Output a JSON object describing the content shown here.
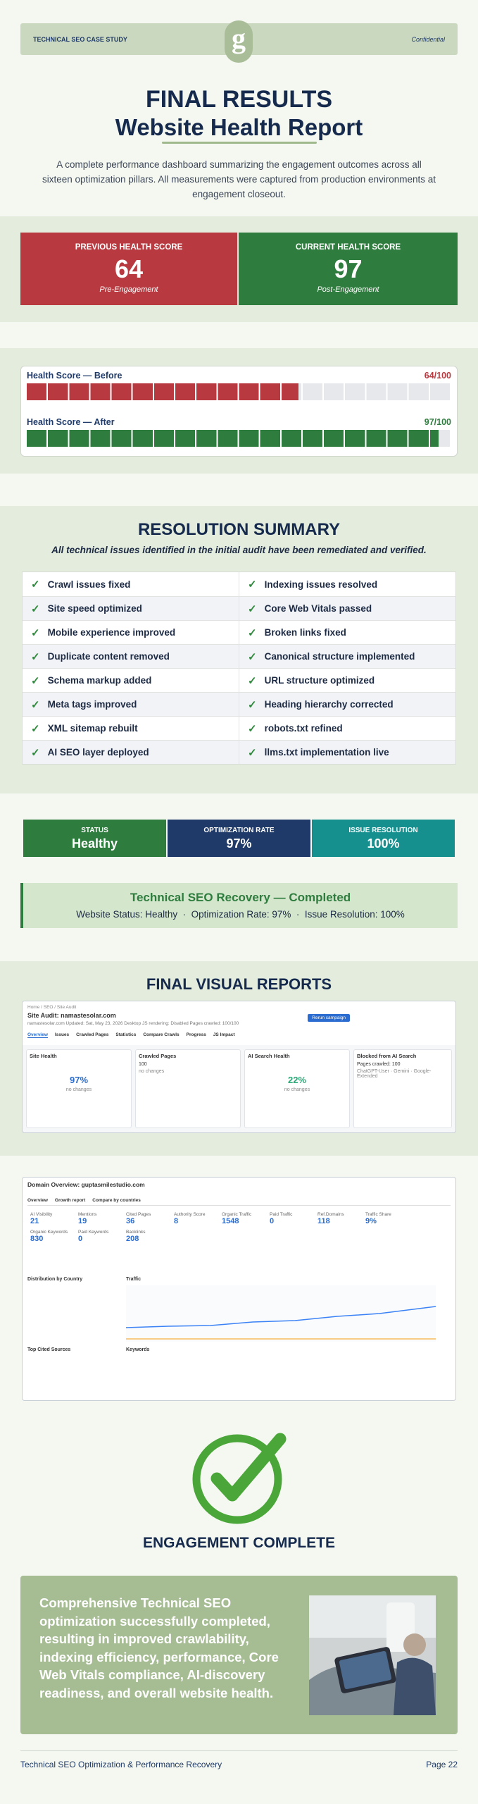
{
  "header": {
    "left": "TECHNICAL SEO CASE STUDY",
    "logo": "g",
    "right": "Confidential"
  },
  "title": {
    "line1": "FINAL RESULTS",
    "line2": "Website Health Report"
  },
  "intro": "A complete performance dashboard summarizing the engagement outcomes across all sixteen optimization pillars. All measurements were captured from production environments at engagement closeout.",
  "scores": [
    {
      "label": "PREVIOUS HEALTH SCORE",
      "value": "64",
      "note": "Pre-Engagement"
    },
    {
      "label": "CURRENT HEALTH SCORE",
      "value": "97",
      "note": "Post-Engagement"
    }
  ],
  "bars": [
    {
      "title": "Health Score — Before",
      "label": "64/100",
      "value": 64
    },
    {
      "title": "Health Score — After",
      "label": "97/100",
      "value": 97
    }
  ],
  "resolution": {
    "title": "RESOLUTION SUMMARY",
    "subtitle": "All technical issues identified in the initial audit have been remediated and verified.",
    "items": [
      [
        "Crawl issues fixed",
        "Indexing issues resolved"
      ],
      [
        "Site speed optimized",
        "Core Web Vitals passed"
      ],
      [
        "Mobile experience improved",
        "Broken links fixed"
      ],
      [
        "Duplicate content removed",
        "Canonical structure implemented"
      ],
      [
        "Schema markup added",
        "URL structure optimized"
      ],
      [
        "Meta tags improved",
        "Heading hierarchy corrected"
      ],
      [
        "XML sitemap rebuilt",
        "robots.txt refined"
      ],
      [
        "AI SEO layer deployed",
        "llms.txt implementation live"
      ]
    ]
  },
  "status": [
    {
      "label": "STATUS",
      "value": "Healthy"
    },
    {
      "label": "OPTIMIZATION RATE",
      "value": "97%"
    },
    {
      "label": "ISSUE RESOLUTION",
      "value": "100%"
    }
  ],
  "callout": {
    "title": "Technical SEO Recovery — Completed",
    "text": "Website Status: Healthy  ·  Optimization Rate: 97%  ·  Issue Resolution: 100%"
  },
  "reports": {
    "title": "FINAL VISUAL REPORTS",
    "audit": {
      "crumb": "Home / SEO / Site Audit",
      "heading": "Site Audit: namastesolar.com",
      "meta": "namastesolar.com    Updated: Sat, May 23, 2026    Desktop    JS rendering: Disabled    Pages crawled: 100/100",
      "button": "Rerun campaign",
      "tabs": [
        "Overview",
        "Issues",
        "Crawled Pages",
        "Statistics",
        "Compare Crawls",
        "Progress",
        "JS Impact"
      ],
      "panels": [
        {
          "title": "Site Health",
          "value": "97%",
          "note": "no changes"
        },
        {
          "title": "Crawled Pages",
          "value": "100",
          "note": "no changes"
        },
        {
          "title": "AI Search Health",
          "value": "22%",
          "note": "no changes"
        },
        {
          "title": "Blocked from AI Search",
          "value": "Pages crawled: 100",
          "note": "ChatGPT-User · Gemini · Google-Extended"
        }
      ]
    },
    "overview": {
      "heading": "Domain Overview: guptasmilestudio.com",
      "tabs": [
        "Overview",
        "Growth report",
        "Compare by countries"
      ],
      "metrics": [
        {
          "label": "AI Visibility",
          "value": "21"
        },
        {
          "label": "Mentions",
          "value": "19"
        },
        {
          "label": "Cited Pages",
          "value": "36"
        },
        {
          "label": "Authority Score",
          "value": "8"
        },
        {
          "label": "Organic Traffic",
          "value": "1548"
        },
        {
          "label": "Paid Traffic",
          "value": "0"
        },
        {
          "label": "Ref.Domains",
          "value": "118"
        },
        {
          "label": "Traffic Share",
          "value": "9%"
        },
        {
          "label": "Organic Keywords",
          "value": "830"
        },
        {
          "label": "Paid Keywords",
          "value": "0"
        },
        {
          "label": "Backlinks",
          "value": "208"
        }
      ],
      "sections": [
        "Distribution by Country",
        "Traffic",
        "Keywords",
        "Top Cited Sources"
      ]
    }
  },
  "complete": {
    "title": "ENGAGEMENT COMPLETE",
    "text": "Comprehensive Technical SEO optimization successfully completed, resulting in improved crawlability, indexing efficiency, performance, Core Web Vitals compliance, AI-discovery readiness, and overall website health."
  },
  "footer": {
    "left": "Technical SEO Optimization & Performance Recovery",
    "right": "Page 22"
  }
}
